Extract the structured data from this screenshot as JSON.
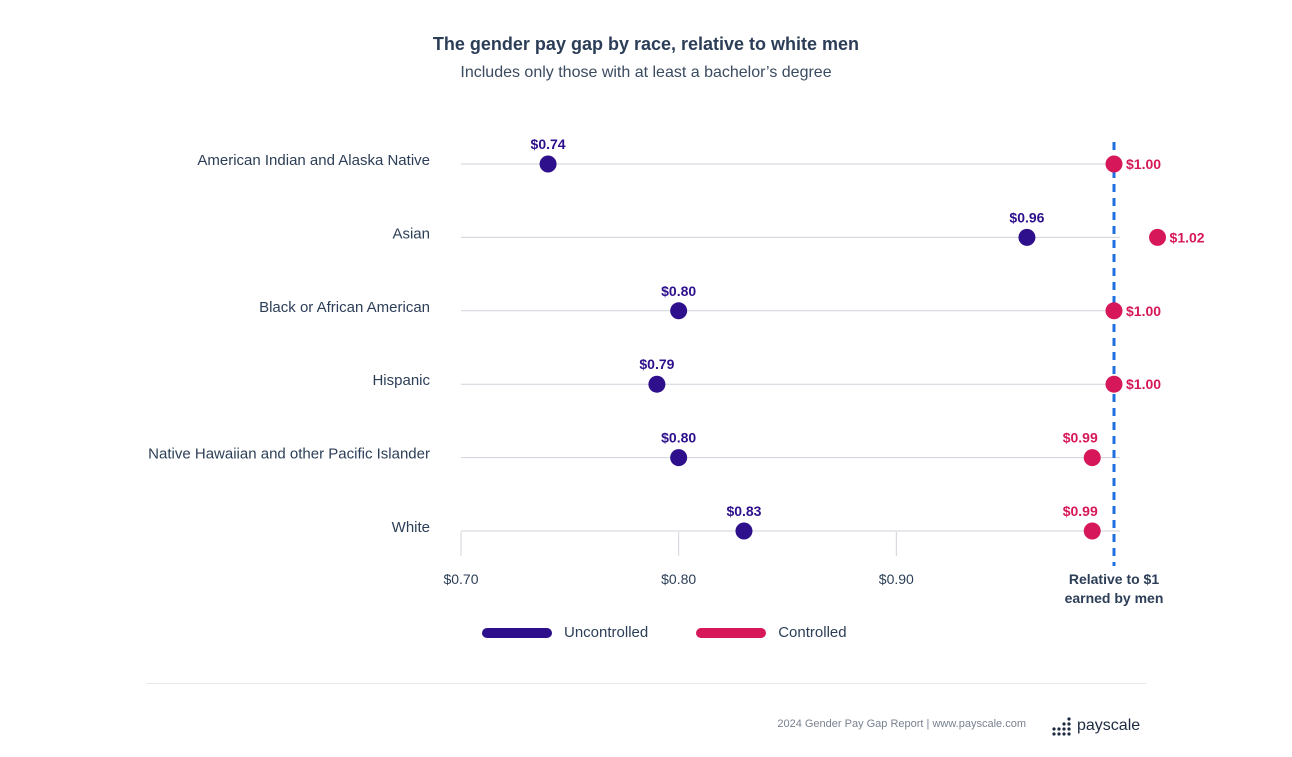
{
  "chart_data": {
    "type": "dot",
    "title": "The gender pay gap by race, relative to white men",
    "subtitle": "Includes only those with at least a bachelor’s degree",
    "categories": [
      "American Indian and Alaska Native",
      "Asian",
      "Black or African American",
      "Hispanic",
      "Native Hawaiian and other Pacific Islander",
      "White"
    ],
    "series": [
      {
        "name": "Uncontrolled",
        "color": "#2e0f8c",
        "values": [
          0.74,
          0.96,
          0.8,
          0.79,
          0.8,
          0.83
        ],
        "labels": [
          "$0.74",
          "$0.96",
          "$0.80",
          "$0.79",
          "$0.80",
          "$0.83"
        ]
      },
      {
        "name": "Controlled",
        "color": "#d6185a",
        "values": [
          1.0,
          1.02,
          1.0,
          1.0,
          0.99,
          0.99
        ],
        "labels": [
          "$1.00",
          "$1.02",
          "$1.00",
          "$1.00",
          "$0.99",
          "$0.99"
        ]
      }
    ],
    "x_ticks": [
      0.7,
      0.8,
      0.9
    ],
    "x_tick_labels": [
      "$0.70",
      "$0.80",
      "$0.90"
    ],
    "xlim": [
      0.7,
      1.0
    ],
    "reference_line": {
      "value": 1.0,
      "color": "#1f6fe0",
      "label_line1": "Relative to $1",
      "label_line2": "earned by men"
    },
    "legend_position": "bottom-center",
    "grid": false
  },
  "footer": {
    "text": "2024 Gender Pay Gap Report  |  www.payscale.com",
    "logo_word": "payscale"
  }
}
